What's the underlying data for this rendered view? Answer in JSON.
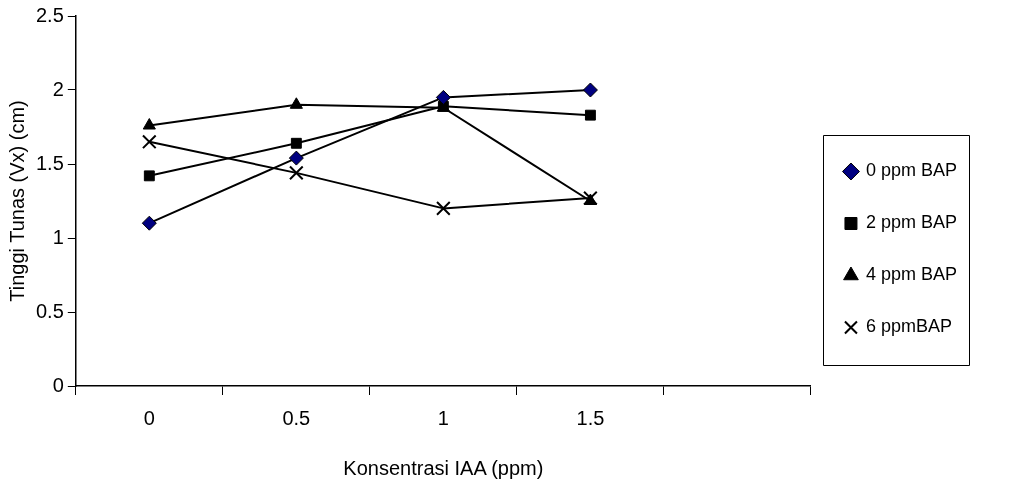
{
  "chart_data": {
    "type": "line",
    "xlabel": "Konsentrasi IAA (ppm)",
    "ylabel": "Tinggi Tunas (Vx) (cm)",
    "categories": [
      "0",
      "0.5",
      "1",
      "1.5",
      null
    ],
    "ylim": [
      0,
      2.5
    ],
    "yticks": [
      0,
      0.5,
      1,
      1.5,
      2,
      2.5
    ],
    "grid": false,
    "legend": "right",
    "line_style": "solid",
    "series": [
      {
        "name": "0 ppm BAP",
        "color": "#000080",
        "marker": "diamond",
        "values": [
          1.1,
          1.54,
          1.95,
          2.0,
          null
        ]
      },
      {
        "name": "2 ppm BAP",
        "color": "#000000",
        "marker": "square",
        "values": [
          1.42,
          1.64,
          1.89,
          1.83,
          null
        ]
      },
      {
        "name": "4 ppm BAP",
        "color": "#000000",
        "marker": "triangle",
        "values": [
          1.76,
          1.9,
          1.88,
          1.25,
          null
        ]
      },
      {
        "name": "6 ppmBAP",
        "color": "#000000",
        "marker": "cross",
        "values": [
          1.65,
          1.44,
          1.2,
          1.27,
          null
        ]
      }
    ]
  }
}
